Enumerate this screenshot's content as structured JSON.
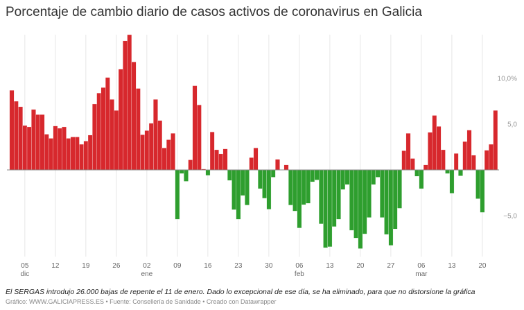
{
  "title": "Porcentaje de cambio diario de casos activos de coronavirus en Galicia",
  "note": "El SERGAS introdujo 26.000 bajas de repente el 11 de enero. Dado lo excepcional de ese día, se ha eliminado, para que no distorsione la gráfica",
  "credit": "Gráfico: WWW.GALICIAPRESS.ES • Fuente: Consellería de Sanidade • Creado con Datawrapper",
  "chart_data": {
    "type": "bar",
    "title": "Porcentaje de cambio diario de casos activos de coronavirus en Galicia",
    "xlabel": "",
    "ylabel": "",
    "ylim": [
      -8.9,
      14.8
    ],
    "grid": "vertical",
    "colors": {
      "positive": "#d7282d",
      "negative": "#2e9e2e",
      "grid": "#e6e6e6",
      "baseline": "#888888"
    },
    "y_ticks": [
      {
        "value": 10,
        "label": "10,0%"
      },
      {
        "value": 5,
        "label": "5,0"
      },
      {
        "value": -5,
        "label": "−5,0"
      }
    ],
    "x_ticks": [
      {
        "date": "5 dic",
        "label": "05",
        "month": "dic"
      },
      {
        "date": "12 dic",
        "label": "12",
        "month": ""
      },
      {
        "date": "19 dic",
        "label": "19",
        "month": ""
      },
      {
        "date": "26 dic",
        "label": "26",
        "month": ""
      },
      {
        "date": "2 ene",
        "label": "02",
        "month": "ene"
      },
      {
        "date": "9 ene",
        "label": "09",
        "month": ""
      },
      {
        "date": "16 ene",
        "label": "16",
        "month": ""
      },
      {
        "date": "23 ene",
        "label": "23",
        "month": ""
      },
      {
        "date": "30 ene",
        "label": "30",
        "month": ""
      },
      {
        "date": "6 feb",
        "label": "06",
        "month": "feb"
      },
      {
        "date": "13 feb",
        "label": "13",
        "month": ""
      },
      {
        "date": "20 feb",
        "label": "20",
        "month": ""
      },
      {
        "date": "27 feb",
        "label": "27",
        "month": ""
      },
      {
        "date": "6 mar",
        "label": "06",
        "month": "mar"
      },
      {
        "date": "13 mar",
        "label": "13",
        "month": ""
      },
      {
        "date": "20 mar",
        "label": "20",
        "month": ""
      }
    ],
    "x": [
      "2 dic",
      "3 dic",
      "4 dic",
      "5 dic",
      "6 dic",
      "7 dic",
      "8 dic",
      "9 dic",
      "10 dic",
      "11 dic",
      "12 dic",
      "13 dic",
      "14 dic",
      "15 dic",
      "16 dic",
      "17 dic",
      "18 dic",
      "19 dic",
      "20 dic",
      "21 dic",
      "22 dic",
      "23 dic",
      "24 dic",
      "25 dic",
      "26 dic",
      "27 dic",
      "28 dic",
      "29 dic",
      "30 dic",
      "31 dic",
      "1 ene",
      "2 ene",
      "3 ene",
      "4 ene",
      "5 ene",
      "6 ene",
      "7 ene",
      "8 ene",
      "9 ene",
      "10 ene",
      "11 ene",
      "12 ene",
      "13 ene",
      "14 ene",
      "15 ene",
      "16 ene",
      "17 ene",
      "18 ene",
      "19 ene",
      "20 ene",
      "21 ene",
      "22 ene",
      "23 ene",
      "24 ene",
      "25 ene",
      "26 ene",
      "27 ene",
      "28 ene",
      "29 ene",
      "30 ene",
      "31 ene",
      "1 feb",
      "2 feb",
      "3 feb",
      "4 feb",
      "5 feb",
      "6 feb",
      "7 feb",
      "8 feb",
      "9 feb",
      "10 feb",
      "11 feb",
      "12 feb",
      "13 feb",
      "14 feb",
      "15 feb",
      "16 feb",
      "17 feb",
      "18 feb",
      "19 feb",
      "20 feb",
      "21 feb",
      "22 feb",
      "23 feb",
      "24 feb",
      "25 feb",
      "26 feb",
      "27 feb",
      "28 feb",
      "1 mar",
      "2 mar",
      "3 mar",
      "4 mar",
      "5 mar",
      "6 mar",
      "7 mar",
      "8 mar",
      "9 mar",
      "10 mar",
      "11 mar",
      "12 mar",
      "13 mar",
      "14 mar",
      "15 mar",
      "16 mar",
      "17 mar",
      "18 mar",
      "19 mar",
      "20 mar",
      "21 mar",
      "22 mar",
      "23 mar"
    ],
    "values": [
      8.7,
      7.5,
      6.9,
      4.85,
      4.7,
      6.6,
      6.05,
      6.05,
      3.9,
      3.45,
      4.8,
      4.55,
      4.7,
      3.45,
      3.6,
      3.6,
      2.8,
      3.15,
      3.8,
      7.2,
      8.4,
      9.0,
      10.1,
      7.7,
      6.5,
      11.0,
      14.1,
      14.8,
      11.8,
      8.9,
      3.85,
      4.3,
      5.1,
      7.7,
      5.4,
      2.4,
      3.3,
      4.0,
      -5.4,
      -0.4,
      -1.25,
      1.1,
      9.2,
      7.1,
      0.1,
      -0.6,
      4.15,
      2.2,
      1.75,
      2.3,
      -1.15,
      -4.35,
      -5.4,
      -2.8,
      -3.85,
      1.35,
      2.4,
      -2.05,
      -3.1,
      -4.3,
      -0.8,
      1.15,
      0,
      0.55,
      -3.85,
      -4.5,
      -6.35,
      -3.8,
      -3.65,
      -1.3,
      -1.1,
      -5.9,
      -8.5,
      -8.4,
      -6.2,
      -5.4,
      -2.15,
      -1.6,
      -6.6,
      -7.45,
      -8.6,
      -7.0,
      -5.2,
      -1.6,
      -0.8,
      -5.2,
      -7.05,
      -8.25,
      -6.45,
      -4.2,
      2.1,
      4.0,
      1.25,
      -0.7,
      -2.05,
      0.55,
      4.1,
      5.95,
      4.75,
      2.2,
      -0.4,
      -2.55,
      1.8,
      -0.65,
      3.1,
      4.35,
      1.6,
      -3.15,
      -4.65,
      2.15,
      2.8,
      6.5
    ]
  }
}
